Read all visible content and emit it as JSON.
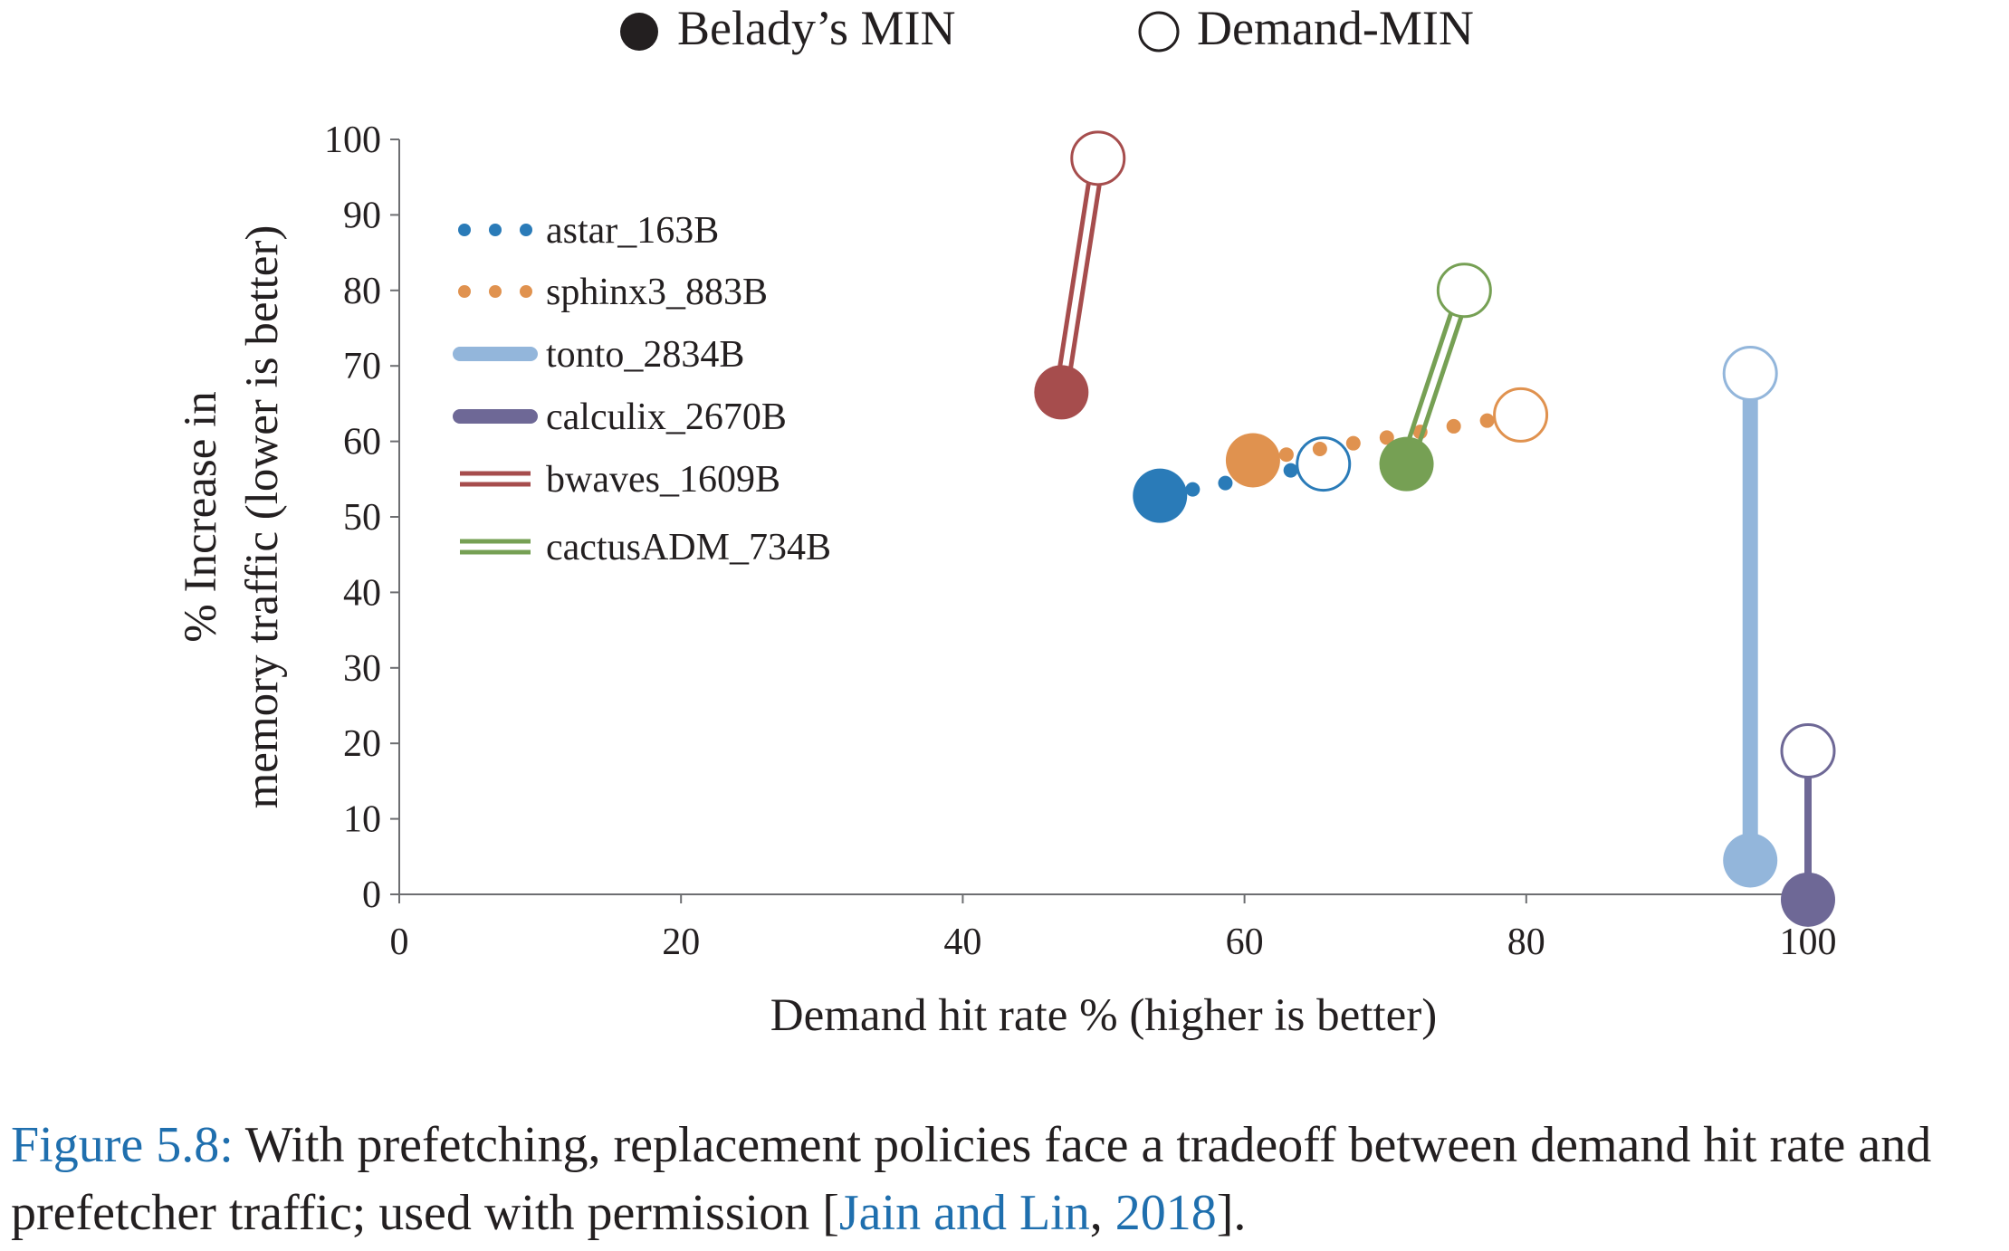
{
  "chart_data": {
    "type": "scatter",
    "xlabel": "Demand hit rate % (higher is better)",
    "ylabel_line1": "% Increase in",
    "ylabel_line2": "memory traffic (lower is better)",
    "xlim": [
      0,
      100
    ],
    "ylim": [
      0,
      100
    ],
    "xticks": [
      0,
      20,
      40,
      60,
      80,
      100
    ],
    "yticks": [
      0,
      10,
      20,
      30,
      40,
      50,
      60,
      70,
      80,
      90,
      100
    ],
    "grid": false,
    "marker_legend": [
      {
        "label": "Belady’s  MIN",
        "marker": "filled-circle"
      },
      {
        "label": "Demand-MIN",
        "marker": "open-circle"
      }
    ],
    "legend_position": "top-left inside plot",
    "series": [
      {
        "name": "astar_163B",
        "color": "#2a7bb8",
        "line_style": "dotted",
        "belady_min": {
          "x": 54,
          "y": 52.8
        },
        "demand_min": {
          "x": 65.6,
          "y": 57
        }
      },
      {
        "name": "sphinx3_883B",
        "color": "#e0924f",
        "line_style": "dotted",
        "belady_min": {
          "x": 60.6,
          "y": 57.5
        },
        "demand_min": {
          "x": 79.6,
          "y": 63.5
        }
      },
      {
        "name": "tonto_2834B",
        "color": "#93b6db",
        "line_style": "thick",
        "belady_min": {
          "x": 95.9,
          "y": 4.5
        },
        "demand_min": {
          "x": 95.9,
          "y": 69
        }
      },
      {
        "name": "calculix_2670B",
        "color": "#6e6896",
        "line_style": "solid",
        "belady_min": {
          "x": 100,
          "y": -0.7
        },
        "demand_min": {
          "x": 100,
          "y": 19
        }
      },
      {
        "name": "bwaves_1609B",
        "color": "#a64d4d",
        "line_style": "double",
        "belady_min": {
          "x": 47,
          "y": 66.5
        },
        "demand_min": {
          "x": 49.6,
          "y": 97.5
        }
      },
      {
        "name": "cactusADM_734B",
        "color": "#76a054",
        "line_style": "double",
        "belady_min": {
          "x": 71.5,
          "y": 57
        },
        "demand_min": {
          "x": 75.6,
          "y": 80
        }
      }
    ]
  },
  "caption": {
    "label": "Figure 5.8:",
    "text_1": " With prefetching, replacement policies face a tradeoff between demand hit rate and",
    "text_2": "prefetcher traffic; used with permission [",
    "citation_author": "Jain and Lin",
    "citation_sep": ", ",
    "citation_year": "2018",
    "text_3": "]."
  }
}
